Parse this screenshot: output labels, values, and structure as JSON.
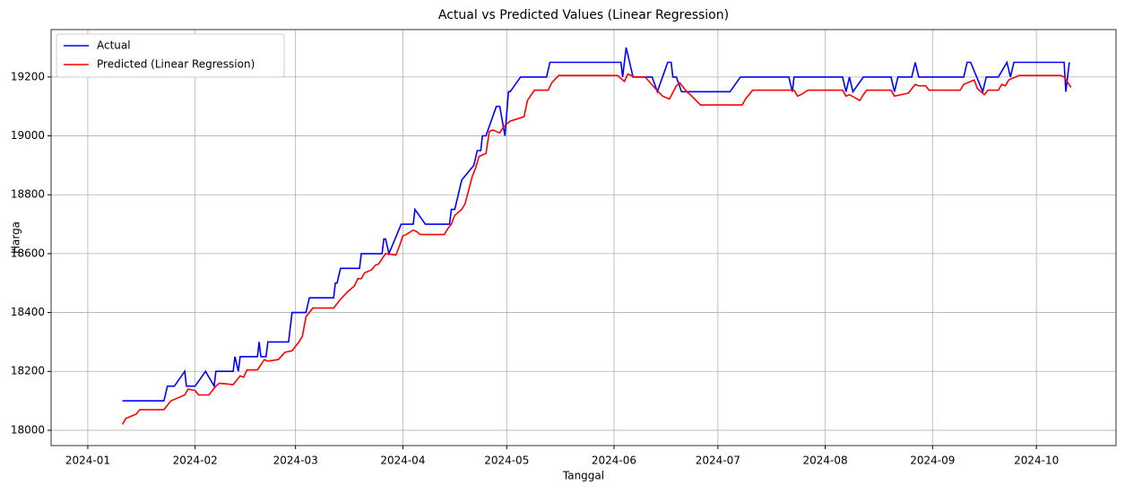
{
  "chart_data": {
    "type": "line",
    "title": "Actual vs Predicted Values (Linear Regression)",
    "x_label": "Tanggal",
    "y_label": "Harga",
    "xlim": [
      -10.6,
      297
    ],
    "ylim": [
      17948,
      19361
    ],
    "xticks": [
      {
        "value": 0,
        "label": "2024-01"
      },
      {
        "value": 31,
        "label": "2024-02"
      },
      {
        "value": 60,
        "label": "2024-03"
      },
      {
        "value": 91,
        "label": "2024-04"
      },
      {
        "value": 121,
        "label": "2024-05"
      },
      {
        "value": 152,
        "label": "2024-06"
      },
      {
        "value": 182,
        "label": "2024-07"
      },
      {
        "value": 213,
        "label": "2024-08"
      },
      {
        "value": 244,
        "label": "2024-09"
      },
      {
        "value": 274,
        "label": "2024-10"
      }
    ],
    "yticks": [
      18000,
      18200,
      18400,
      18600,
      18800,
      19000,
      19200
    ],
    "grid": true,
    "legend": "upper left",
    "series": [
      {
        "name": "Actual",
        "color": "#0000ff",
        "x": [
          10,
          22,
          23,
          25,
          28,
          28.5,
          31,
          34,
          36.5,
          37,
          42,
          42.5,
          43.5,
          44,
          49,
          49.5,
          50,
          51.5,
          52,
          58,
          59,
          63,
          64,
          71,
          71.5,
          72,
          73,
          78.5,
          79,
          85,
          85.5,
          86,
          87,
          90.5,
          94,
          94.5,
          97.5,
          104.5,
          105,
          106,
          108,
          111.5,
          112.5,
          113.5,
          114,
          115,
          118,
          119,
          120.5,
          121.5,
          122,
          125,
          132.5,
          133.5,
          154,
          154.5,
          155.5,
          157.5,
          163,
          164.5,
          167.5,
          168.5,
          169,
          170,
          171.5,
          185.5,
          188.5,
          202.5,
          203.5,
          204,
          218,
          219,
          220,
          221,
          224,
          232,
          233,
          234,
          238,
          239,
          240,
          253,
          254,
          255,
          258.5,
          259.5,
          263,
          265.5,
          266.5,
          267.5,
          282,
          282.5,
          283.5
        ],
        "values": [
          18100,
          18100,
          18150,
          18150,
          18200,
          18150,
          18150,
          18200,
          18150,
          18200,
          18200,
          18250,
          18200,
          18250,
          18250,
          18300,
          18250,
          18250,
          18300,
          18300,
          18400,
          18400,
          18450,
          18450,
          18500,
          18500,
          18550,
          18550,
          18600,
          18600,
          18650,
          18650,
          18600,
          18700,
          18700,
          18750,
          18700,
          18700,
          18750,
          18750,
          18850,
          18900,
          18950,
          18950,
          19000,
          19000,
          19100,
          19100,
          19000,
          19150,
          19150,
          19200,
          19200,
          19250,
          19250,
          19200,
          19300,
          19200,
          19200,
          19150,
          19250,
          19250,
          19200,
          19200,
          19150,
          19150,
          19200,
          19200,
          19150,
          19200,
          19200,
          19150,
          19200,
          19150,
          19200,
          19200,
          19150,
          19200,
          19200,
          19250,
          19200,
          19200,
          19250,
          19250,
          19150,
          19200,
          19200,
          19250,
          19200,
          19250,
          19250,
          19150,
          19250
        ]
      },
      {
        "name": "Predicted (Linear Regression)",
        "color": "#ff0000",
        "x": [
          10,
          11,
          13,
          14,
          15,
          22,
          24,
          26,
          28,
          29,
          31,
          32,
          35,
          37,
          38,
          42,
          44,
          45,
          46,
          49,
          51,
          52,
          55,
          57,
          59,
          61,
          62,
          63,
          65,
          71,
          73,
          75,
          77,
          78,
          79,
          80,
          82,
          83,
          84,
          86,
          89,
          90,
          91,
          92,
          94,
          95,
          96,
          103,
          104,
          105,
          106,
          108,
          109,
          111,
          112,
          113,
          115,
          116,
          117,
          119,
          120,
          122,
          126,
          127,
          129,
          133,
          134,
          136,
          153,
          155,
          156,
          158,
          161,
          164,
          166,
          168,
          170,
          171,
          173,
          174,
          177,
          189,
          190,
          192,
          204,
          205,
          206,
          208,
          218,
          219,
          220,
          223,
          224,
          225,
          232,
          233,
          235,
          237,
          239,
          240,
          242,
          243,
          252,
          253,
          256,
          257,
          259,
          260,
          263,
          264,
          265,
          266,
          267,
          269,
          281,
          282,
          284
        ],
        "values": [
          18020,
          18040,
          18050,
          18055,
          18070,
          18070,
          18100,
          18110,
          18120,
          18140,
          18135,
          18120,
          18120,
          18150,
          18160,
          18155,
          18185,
          18180,
          18205,
          18205,
          18240,
          18235,
          18240,
          18265,
          18270,
          18300,
          18320,
          18385,
          18415,
          18415,
          18445,
          18470,
          18490,
          18515,
          18515,
          18535,
          18545,
          18560,
          18565,
          18600,
          18595,
          18625,
          18660,
          18665,
          18680,
          18675,
          18665,
          18665,
          18685,
          18700,
          18730,
          18750,
          18770,
          18860,
          18890,
          18930,
          18940,
          19015,
          19020,
          19010,
          19030,
          19050,
          19065,
          19120,
          19155,
          19155,
          19180,
          19205,
          19205,
          19185,
          19210,
          19200,
          19200,
          19160,
          19135,
          19125,
          19170,
          19180,
          19150,
          19140,
          19105,
          19105,
          19125,
          19155,
          19155,
          19135,
          19140,
          19155,
          19155,
          19135,
          19140,
          19120,
          19140,
          19155,
          19155,
          19135,
          19140,
          19145,
          19175,
          19170,
          19170,
          19155,
          19155,
          19175,
          19190,
          19160,
          19140,
          19155,
          19155,
          19175,
          19170,
          19190,
          19195,
          19205,
          19205,
          19200,
          19165
        ]
      }
    ]
  }
}
